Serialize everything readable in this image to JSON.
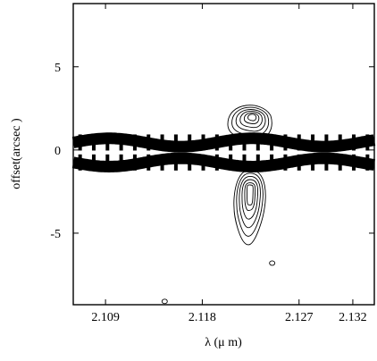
{
  "chart_data": {
    "type": "contour",
    "title": "",
    "xlabel": "λ (μ m)",
    "ylabel": "offset(arcsec   )",
    "xlim": [
      2.106,
      2.134
    ],
    "ylim": [
      -9.3,
      8.8
    ],
    "x_ticks": [
      {
        "value": 2.109,
        "label": "2.109"
      },
      {
        "value": 2.118,
        "label": "2.118"
      },
      {
        "value": 2.127,
        "label": "2.127"
      },
      {
        "value": 2.132,
        "label": "2.132"
      }
    ],
    "y_ticks": [
      {
        "value": 5,
        "label": "5"
      },
      {
        "value": 0,
        "label": "0"
      },
      {
        "value": -5,
        "label": "-5"
      }
    ],
    "continuum_traces": [
      {
        "name": "",
        "center_offset": 0.45
      },
      {
        "name": "",
        "center_offset": -0.75
      }
    ],
    "emission_features": [
      {
        "wavelength": 2.1222,
        "offset_min": 1.0,
        "offset_max": 3.0
      },
      {
        "wavelength": 2.1222,
        "offset_min": -5.7,
        "offset_max": -1.2
      },
      {
        "wavelength": 2.1245,
        "offset": -6.8
      },
      {
        "wavelength": 2.1145,
        "offset": -9.1
      }
    ],
    "grid": false,
    "legend": "none"
  }
}
